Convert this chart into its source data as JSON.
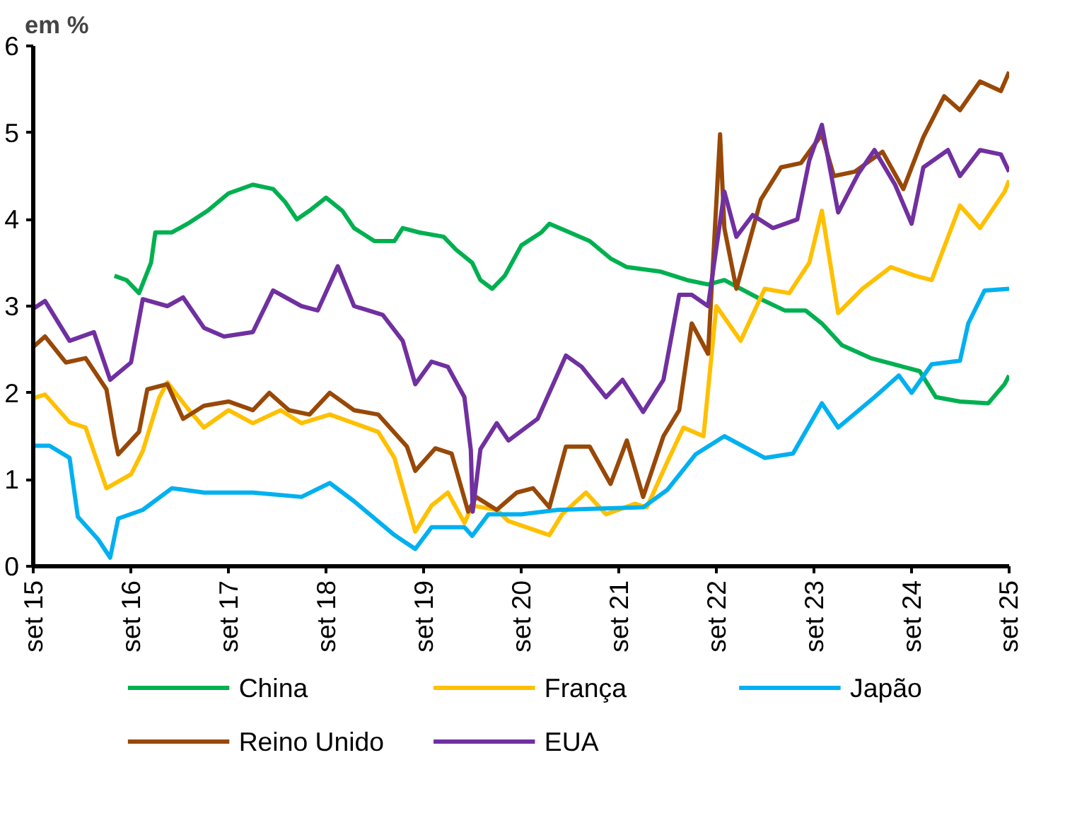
{
  "chart_data": {
    "type": "line",
    "ylabel": "em %",
    "xlim": [
      "2015-09-01",
      "2025-09-01"
    ],
    "xticks": [
      {
        "value": "2015-09",
        "label": "set 15"
      },
      {
        "value": "2016-09",
        "label": "set 16"
      },
      {
        "value": "2017-09",
        "label": "set 17"
      },
      {
        "value": "2018-09",
        "label": "set 18"
      },
      {
        "value": "2019-09",
        "label": "set 19"
      },
      {
        "value": "2020-09",
        "label": "set 20"
      },
      {
        "value": "2021-09",
        "label": "set 21"
      },
      {
        "value": "2022-09",
        "label": "set 22"
      },
      {
        "value": "2023-09",
        "label": "set 23"
      },
      {
        "value": "2024-09",
        "label": "set 24"
      },
      {
        "value": "2025-09",
        "label": "set 25"
      }
    ],
    "ylim": [
      0,
      6
    ],
    "yticks": [
      0,
      1,
      2,
      3,
      4,
      5,
      6
    ],
    "legend": "bottom",
    "line_style": "solid",
    "series": [
      {
        "name": "China",
        "color": "#00b050",
        "x": [
          "2016-07-01",
          "2016-08-15",
          "2016-10-01",
          "2016-11-15",
          "2016-12-01",
          "2017-02-01",
          "2017-04-01",
          "2017-06-15",
          "2017-09-01",
          "2017-12-01",
          "2018-02-15",
          "2018-04-01",
          "2018-05-15",
          "2018-07-01",
          "2018-09-01",
          "2018-11-01",
          "2018-12-15",
          "2019-03-01",
          "2019-05-15",
          "2019-06-15",
          "2019-08-15",
          "2019-11-15",
          "2020-01-01",
          "2020-03-01",
          "2020-04-01",
          "2020-05-15",
          "2020-07-01",
          "2020-09-01",
          "2020-11-15",
          "2020-12-15",
          "2021-03-01",
          "2021-05-15",
          "2021-08-01",
          "2021-10-01",
          "2022-02-01",
          "2022-05-15",
          "2022-08-01",
          "2022-10-01",
          "2023-02-01",
          "2023-05-15",
          "2023-08-01",
          "2023-10-01",
          "2023-12-15",
          "2024-04-01",
          "2024-08-01",
          "2024-10-01",
          "2024-12-01",
          "2025-03-01",
          "2025-06-15",
          "2025-08-15",
          "2025-09-01"
        ],
        "values": [
          3.35,
          3.3,
          3.15,
          3.5,
          3.85,
          3.85,
          3.95,
          4.1,
          4.3,
          4.4,
          4.35,
          4.2,
          4.0,
          4.1,
          4.25,
          4.1,
          3.9,
          3.75,
          3.75,
          3.9,
          3.85,
          3.8,
          3.65,
          3.5,
          3.3,
          3.2,
          3.35,
          3.7,
          3.85,
          3.95,
          3.85,
          3.75,
          3.55,
          3.45,
          3.4,
          3.3,
          3.25,
          3.3,
          3.1,
          2.95,
          2.95,
          2.8,
          2.55,
          2.4,
          2.3,
          2.25,
          1.95,
          1.9,
          1.88,
          2.1,
          2.2
        ]
      },
      {
        "name": "França",
        "color": "#ffc000",
        "x": [
          "2015-09-01",
          "2015-10-15",
          "2016-01-15",
          "2016-03-15",
          "2016-06-01",
          "2016-09-01",
          "2016-10-15",
          "2016-12-15",
          "2017-01-15",
          "2017-04-01",
          "2017-06-01",
          "2017-09-01",
          "2017-12-01",
          "2018-03-15",
          "2018-06-01",
          "2018-09-15",
          "2018-12-15",
          "2019-03-15",
          "2019-05-15",
          "2019-08-01",
          "2019-10-01",
          "2019-12-01",
          "2020-02-01",
          "2020-03-01",
          "2020-06-01",
          "2020-07-15",
          "2020-12-15",
          "2021-02-01",
          "2021-05-01",
          "2021-07-15",
          "2021-11-01",
          "2021-12-15",
          "2022-03-01",
          "2022-05-01",
          "2022-07-15",
          "2022-09-01",
          "2022-12-01",
          "2023-03-01",
          "2023-06-01",
          "2023-08-15",
          "2023-10-01",
          "2023-12-01",
          "2024-03-01",
          "2024-06-15",
          "2024-09-15",
          "2024-11-15",
          "2025-03-01",
          "2025-05-15",
          "2025-08-15",
          "2025-09-01"
        ],
        "values": [
          1.94,
          1.98,
          1.66,
          1.6,
          0.9,
          1.06,
          1.33,
          1.94,
          2.12,
          1.82,
          1.6,
          1.8,
          1.65,
          1.8,
          1.65,
          1.75,
          1.65,
          1.55,
          1.25,
          0.4,
          0.7,
          0.85,
          0.5,
          0.7,
          0.65,
          0.52,
          0.36,
          0.6,
          0.85,
          0.6,
          0.72,
          0.68,
          1.2,
          1.6,
          1.5,
          3.0,
          2.6,
          3.2,
          3.15,
          3.5,
          4.1,
          2.92,
          3.2,
          3.45,
          3.35,
          3.3,
          4.16,
          3.9,
          4.32,
          4.45
        ]
      },
      {
        "name": "Japão",
        "color": "#00b0f0",
        "x": [
          "2015-09-01",
          "2015-11-01",
          "2016-01-15",
          "2016-02-15",
          "2016-05-01",
          "2016-06-15",
          "2016-07-15",
          "2016-10-15",
          "2017-02-01",
          "2017-06-01",
          "2017-12-01",
          "2018-06-01",
          "2018-09-15",
          "2018-12-15",
          "2019-05-15",
          "2019-08-01",
          "2019-10-01",
          "2020-02-01",
          "2020-03-01",
          "2020-05-01",
          "2020-09-01",
          "2021-01-15",
          "2021-12-01",
          "2022-03-01",
          "2022-06-15",
          "2022-10-01",
          "2023-03-01",
          "2023-06-15",
          "2023-10-01",
          "2023-12-01",
          "2024-04-15",
          "2024-07-15",
          "2024-09-01",
          "2024-11-15",
          "2025-03-01",
          "2025-04-01",
          "2025-06-01",
          "2025-09-01"
        ],
        "values": [
          1.39,
          1.39,
          1.25,
          0.57,
          0.31,
          0.1,
          0.55,
          0.65,
          0.9,
          0.85,
          0.85,
          0.8,
          0.96,
          0.75,
          0.36,
          0.2,
          0.45,
          0.45,
          0.35,
          0.6,
          0.6,
          0.65,
          0.68,
          0.88,
          1.29,
          1.5,
          1.25,
          1.3,
          1.88,
          1.6,
          1.95,
          2.2,
          2.0,
          2.33,
          2.37,
          2.8,
          3.18,
          3.2
        ]
      },
      {
        "name": "Reino Unido",
        "color": "#984807",
        "x": [
          "2015-09-01",
          "2015-10-15",
          "2016-01-01",
          "2016-03-15",
          "2016-06-01",
          "2016-07-01",
          "2016-07-15",
          "2016-10-01",
          "2016-11-01",
          "2017-01-15",
          "2017-03-15",
          "2017-06-01",
          "2017-09-01",
          "2017-12-01",
          "2018-02-01",
          "2018-04-15",
          "2018-07-01",
          "2018-09-15",
          "2018-12-15",
          "2019-03-15",
          "2019-07-01",
          "2019-08-01",
          "2019-10-15",
          "2019-12-15",
          "2020-02-15",
          "2020-03-15",
          "2020-06-01",
          "2020-08-15",
          "2020-10-15",
          "2020-12-15",
          "2021-02-15",
          "2021-05-15",
          "2021-08-01",
          "2021-10-01",
          "2021-12-01",
          "2022-02-15",
          "2022-04-15",
          "2022-06-01",
          "2022-08-01",
          "2022-09-15",
          "2022-10-01",
          "2022-11-15",
          "2023-02-15",
          "2023-05-01",
          "2023-07-15",
          "2023-10-01",
          "2023-11-15",
          "2024-02-01",
          "2024-05-15",
          "2024-08-01",
          "2024-10-15",
          "2025-01-01",
          "2025-03-01",
          "2025-05-15",
          "2025-08-01",
          "2025-09-01"
        ],
        "values": [
          2.53,
          2.65,
          2.35,
          2.4,
          2.04,
          1.5,
          1.29,
          1.55,
          2.04,
          2.1,
          1.7,
          1.85,
          1.9,
          1.8,
          2.0,
          1.8,
          1.75,
          2.0,
          1.8,
          1.75,
          1.38,
          1.1,
          1.36,
          1.3,
          0.63,
          0.8,
          0.65,
          0.85,
          0.9,
          0.68,
          1.38,
          1.38,
          0.95,
          1.45,
          0.8,
          1.5,
          1.8,
          2.8,
          2.45,
          4.98,
          3.9,
          3.2,
          4.23,
          4.6,
          4.65,
          4.98,
          4.5,
          4.55,
          4.78,
          4.35,
          4.95,
          5.42,
          5.26,
          5.59,
          5.48,
          5.7
        ]
      },
      {
        "name": "EUA",
        "color": "#7030a0",
        "x": [
          "2015-09-01",
          "2015-10-15",
          "2016-01-15",
          "2016-04-15",
          "2016-06-15",
          "2016-09-01",
          "2016-10-15",
          "2017-01-15",
          "2017-03-15",
          "2017-06-01",
          "2017-08-15",
          "2017-12-01",
          "2018-02-15",
          "2018-06-01",
          "2018-08-01",
          "2018-10-15",
          "2018-12-15",
          "2019-04-01",
          "2019-06-15",
          "2019-08-01",
          "2019-10-01",
          "2019-12-01",
          "2020-02-01",
          "2020-02-25",
          "2020-03-03",
          "2020-04-01",
          "2020-06-01",
          "2020-07-15",
          "2020-11-01",
          "2021-02-15",
          "2021-04-15",
          "2021-07-15",
          "2021-09-15",
          "2021-12-01",
          "2022-02-15",
          "2022-04-15",
          "2022-06-01",
          "2022-08-01",
          "2022-10-01",
          "2022-11-15",
          "2023-01-15",
          "2023-04-01",
          "2023-07-01",
          "2023-08-15",
          "2023-10-01",
          "2023-12-01",
          "2024-02-15",
          "2024-04-15",
          "2024-07-01",
          "2024-09-01",
          "2024-10-15",
          "2025-01-15",
          "2025-03-01",
          "2025-05-15",
          "2025-08-01",
          "2025-09-01"
        ],
        "values": [
          2.97,
          3.06,
          2.6,
          2.7,
          2.15,
          2.35,
          3.08,
          3.0,
          3.1,
          2.75,
          2.65,
          2.7,
          3.18,
          3.0,
          2.95,
          3.46,
          3.0,
          2.9,
          2.6,
          2.1,
          2.36,
          2.3,
          1.95,
          1.34,
          0.63,
          1.35,
          1.65,
          1.45,
          1.7,
          2.43,
          2.3,
          1.95,
          2.15,
          1.78,
          2.15,
          3.13,
          3.13,
          3.0,
          4.32,
          3.8,
          4.05,
          3.9,
          4.0,
          4.68,
          5.09,
          4.08,
          4.53,
          4.8,
          4.4,
          3.95,
          4.6,
          4.8,
          4.5,
          4.8,
          4.75,
          4.55
        ]
      }
    ]
  }
}
